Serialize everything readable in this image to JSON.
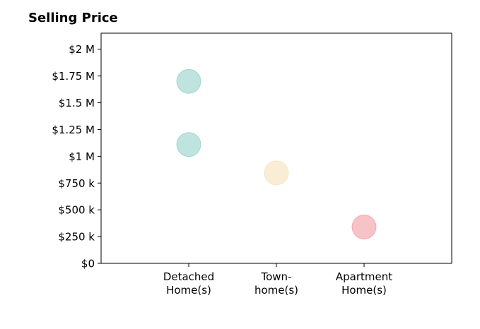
{
  "chart_data": {
    "type": "scatter",
    "title": "Selling Price",
    "xlabel": "",
    "ylabel": "",
    "categories": [
      [
        "Detached",
        "Home(s)"
      ],
      [
        "Town-",
        "home(s)"
      ],
      [
        "Apartment",
        "Home(s)"
      ]
    ],
    "xlim": [
      -1,
      3
    ],
    "ylim": [
      0,
      2150000
    ],
    "yticks": [
      0,
      250000,
      500000,
      750000,
      1000000,
      1250000,
      1500000,
      1750000,
      2000000
    ],
    "ytick_labels": [
      "$0",
      "$250 k",
      "$500 k",
      "$750 k",
      "$1 M",
      "$1.25 M",
      "$1.5 M",
      "$1.75 M",
      "$2 M"
    ],
    "grid": false,
    "points": [
      {
        "category": 0,
        "value": 1700000,
        "color": "#7fc7c0"
      },
      {
        "category": 0,
        "value": 1110000,
        "color": "#7fc7c0"
      },
      {
        "category": 1,
        "value": 845000,
        "color": "#f3ddab"
      },
      {
        "category": 2,
        "value": 340000,
        "color": "#f08890"
      }
    ]
  }
}
